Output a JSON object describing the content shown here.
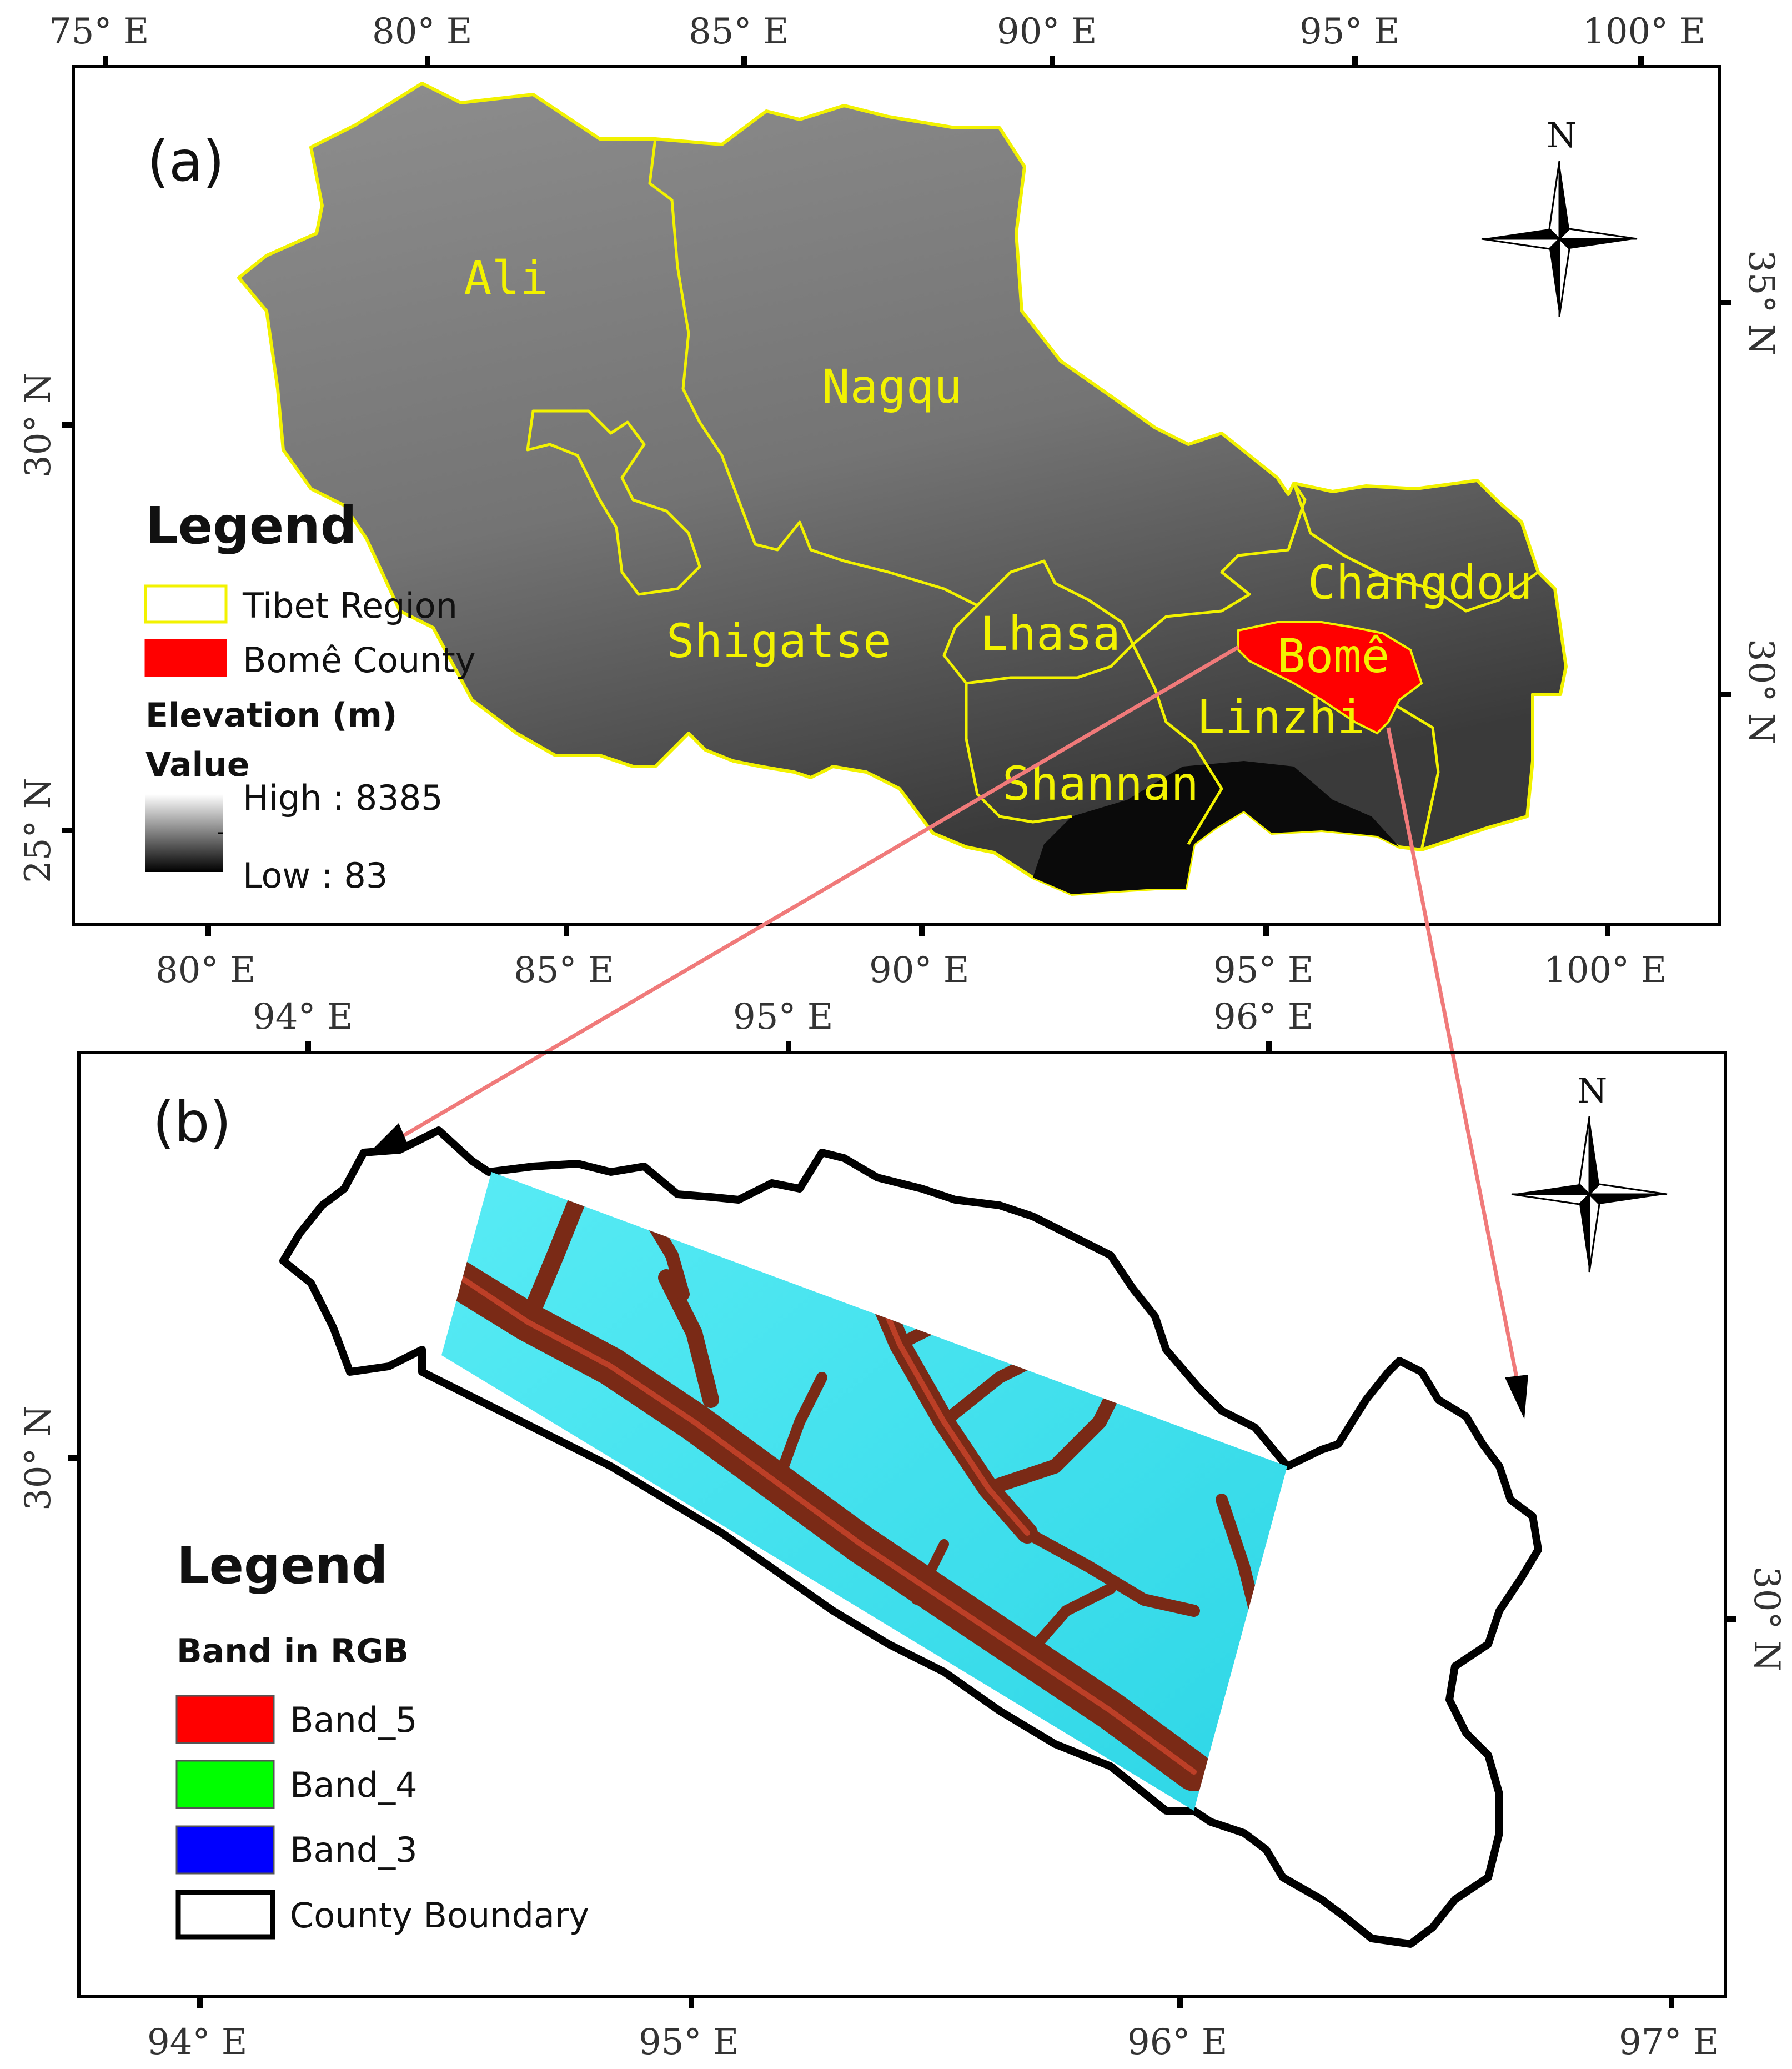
{
  "panel_a": {
    "tag": "(a)",
    "top_ticks": [
      "75° E",
      "80° E",
      "85° E",
      "90° E",
      "95° E",
      "100° E"
    ],
    "bottom_ticks": [
      "80° E",
      "85° E",
      "90° E",
      "95° E",
      "100° E"
    ],
    "left_ticks": [
      "30° N",
      "25° N"
    ],
    "right_ticks": [
      "35° N",
      "30° N"
    ],
    "regions": [
      "Ali",
      "Nagqu",
      "Changdou",
      "Shigatse",
      "Lhasa",
      "Bomê",
      "Linzhi",
      "Shannan"
    ],
    "north": "N",
    "legend": {
      "title": "Legend",
      "items": [
        "Tibet Region",
        "Bomê County"
      ],
      "elevation_title": "Elevation (m)",
      "value_label": "Value",
      "high": "High : 8385",
      "low": "Low : 83"
    },
    "colors": {
      "boundary": "#f2f200",
      "county": "#ff0000"
    }
  },
  "panel_b": {
    "tag": "(b)",
    "top_ticks": [
      "94° E",
      "95° E",
      "96° E"
    ],
    "bottom_ticks": [
      "94° E",
      "95° E",
      "96° E",
      "97° E"
    ],
    "left_ticks": [
      "30° N"
    ],
    "right_ticks": [
      "30° N"
    ],
    "north": "N",
    "legend": {
      "title": "Legend",
      "subtitle": "Band in RGB",
      "items": [
        "Band_5",
        "Band_4",
        "Band_3",
        "County Boundary"
      ]
    },
    "colors": {
      "band_5": "#ff0000",
      "band_4": "#00ff00",
      "band_3": "#0000ff",
      "image_base": "#3fe3ef",
      "valley": "#7a2a16"
    }
  },
  "connector_color": "#f07a7a"
}
